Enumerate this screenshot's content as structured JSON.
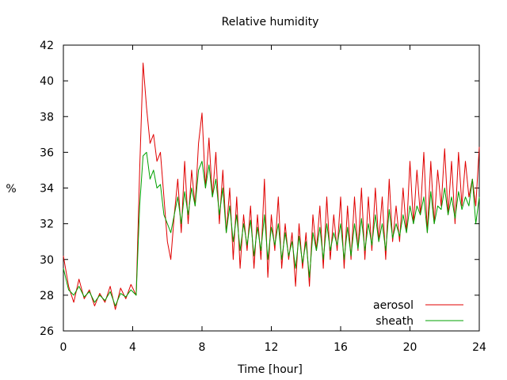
{
  "chart_data": {
    "type": "line",
    "title": "Relative humidity",
    "xlabel": "Time [hour]",
    "ylabel": "%",
    "xlim": [
      0,
      24
    ],
    "ylim": [
      26,
      42
    ],
    "xticks": [
      0,
      4,
      8,
      12,
      16,
      20,
      24
    ],
    "yticks": [
      26,
      28,
      30,
      32,
      34,
      36,
      38,
      40,
      42
    ],
    "grid": false,
    "legend_position": "bottom-right",
    "series": [
      {
        "name": "aerosol",
        "color": "#e00000",
        "x": [
          0,
          0.3,
          0.6,
          0.9,
          1.2,
          1.5,
          1.8,
          2.1,
          2.4,
          2.7,
          3.0,
          3.3,
          3.6,
          3.9,
          4.2,
          4.4,
          4.6,
          4.8,
          5.0,
          5.2,
          5.4,
          5.6,
          5.8,
          6.0,
          6.2,
          6.4,
          6.6,
          6.8,
          7.0,
          7.2,
          7.4,
          7.6,
          7.8,
          8.0,
          8.2,
          8.4,
          8.6,
          8.8,
          9.0,
          9.2,
          9.4,
          9.6,
          9.8,
          10.0,
          10.2,
          10.4,
          10.6,
          10.8,
          11.0,
          11.2,
          11.4,
          11.6,
          11.8,
          12.0,
          12.2,
          12.4,
          12.6,
          12.8,
          13.0,
          13.2,
          13.4,
          13.6,
          13.8,
          14.0,
          14.2,
          14.4,
          14.6,
          14.8,
          15.0,
          15.2,
          15.4,
          15.6,
          15.8,
          16.0,
          16.2,
          16.4,
          16.6,
          16.8,
          17.0,
          17.2,
          17.4,
          17.6,
          17.8,
          18.0,
          18.2,
          18.4,
          18.6,
          18.8,
          19.0,
          19.2,
          19.4,
          19.6,
          19.8,
          20.0,
          20.2,
          20.4,
          20.6,
          20.8,
          21.0,
          21.2,
          21.4,
          21.6,
          21.8,
          22.0,
          22.2,
          22.4,
          22.6,
          22.8,
          23.0,
          23.2,
          23.4,
          23.6,
          23.8,
          24.0
        ],
        "y": [
          30.2,
          28.5,
          27.6,
          28.9,
          27.8,
          28.3,
          27.4,
          28.1,
          27.6,
          28.5,
          27.2,
          28.4,
          27.8,
          28.6,
          28.0,
          35.0,
          41.0,
          38.5,
          36.5,
          37.0,
          35.5,
          36.0,
          33.5,
          31.0,
          30.0,
          32.5,
          34.5,
          31.5,
          35.5,
          32.0,
          35.0,
          33.0,
          36.5,
          38.2,
          34.0,
          36.8,
          33.5,
          36.0,
          32.0,
          35.0,
          31.5,
          34.0,
          30.0,
          33.5,
          29.5,
          32.5,
          30.5,
          33.0,
          29.5,
          32.5,
          30.0,
          34.5,
          29.0,
          32.5,
          30.5,
          33.5,
          29.5,
          32.0,
          30.0,
          31.5,
          28.5,
          32.0,
          29.5,
          31.5,
          28.5,
          32.5,
          30.5,
          33.0,
          29.5,
          33.5,
          30.0,
          32.5,
          30.5,
          33.5,
          29.5,
          33.0,
          30.0,
          33.5,
          30.5,
          34.0,
          30.0,
          33.5,
          30.5,
          34.0,
          31.0,
          33.5,
          30.0,
          34.5,
          31.0,
          33.0,
          31.0,
          34.0,
          31.5,
          35.5,
          32.0,
          35.0,
          32.5,
          36.0,
          31.5,
          35.5,
          32.0,
          35.0,
          33.0,
          36.2,
          32.5,
          35.5,
          32.0,
          36.0,
          33.0,
          35.5,
          33.5,
          34.5,
          33.0,
          36.3
        ]
      },
      {
        "name": "sheath",
        "color": "#00a000",
        "x": [
          0,
          0.3,
          0.6,
          0.9,
          1.2,
          1.5,
          1.8,
          2.1,
          2.4,
          2.7,
          3.0,
          3.3,
          3.6,
          3.9,
          4.2,
          4.4,
          4.6,
          4.8,
          5.0,
          5.2,
          5.4,
          5.6,
          5.8,
          6.0,
          6.2,
          6.4,
          6.6,
          6.8,
          7.0,
          7.2,
          7.4,
          7.6,
          7.8,
          8.0,
          8.2,
          8.4,
          8.6,
          8.8,
          9.0,
          9.2,
          9.4,
          9.6,
          9.8,
          10.0,
          10.2,
          10.4,
          10.6,
          10.8,
          11.0,
          11.2,
          11.4,
          11.6,
          11.8,
          12.0,
          12.2,
          12.4,
          12.6,
          12.8,
          13.0,
          13.2,
          13.4,
          13.6,
          13.8,
          14.0,
          14.2,
          14.4,
          14.6,
          14.8,
          15.0,
          15.2,
          15.4,
          15.6,
          15.8,
          16.0,
          16.2,
          16.4,
          16.6,
          16.8,
          17.0,
          17.2,
          17.4,
          17.6,
          17.8,
          18.0,
          18.2,
          18.4,
          18.6,
          18.8,
          19.0,
          19.2,
          19.4,
          19.6,
          19.8,
          20.0,
          20.2,
          20.4,
          20.6,
          20.8,
          21.0,
          21.2,
          21.4,
          21.6,
          21.8,
          22.0,
          22.2,
          22.4,
          22.6,
          22.8,
          23.0,
          23.2,
          23.4,
          23.6,
          23.8,
          24.0
        ],
        "y": [
          29.5,
          28.3,
          28.0,
          28.5,
          27.9,
          28.2,
          27.6,
          28.0,
          27.7,
          28.2,
          27.4,
          28.1,
          27.9,
          28.3,
          28.0,
          33.0,
          35.8,
          36.0,
          34.5,
          35.0,
          34.0,
          34.2,
          32.5,
          32.0,
          31.5,
          32.5,
          33.5,
          32.0,
          33.8,
          32.5,
          34.0,
          33.0,
          35.0,
          35.5,
          34.0,
          35.3,
          33.5,
          34.5,
          32.5,
          34.0,
          31.5,
          33.0,
          31.0,
          32.5,
          30.5,
          32.0,
          30.8,
          32.2,
          30.2,
          31.8,
          30.5,
          32.5,
          30.0,
          31.8,
          30.8,
          32.0,
          30.0,
          31.5,
          30.2,
          31.0,
          29.5,
          31.3,
          29.8,
          31.0,
          29.0,
          31.5,
          30.5,
          31.8,
          30.0,
          32.0,
          30.5,
          31.5,
          30.8,
          32.0,
          30.0,
          31.8,
          30.2,
          32.0,
          30.6,
          32.3,
          30.5,
          32.0,
          30.8,
          32.5,
          31.0,
          32.0,
          30.5,
          32.8,
          31.2,
          32.0,
          31.3,
          32.5,
          31.5,
          33.0,
          32.0,
          33.0,
          32.5,
          33.5,
          31.5,
          33.8,
          32.0,
          33.0,
          32.8,
          34.0,
          32.5,
          33.5,
          32.3,
          33.8,
          32.8,
          33.5,
          33.0,
          34.5,
          32.0,
          33.5
        ]
      }
    ]
  }
}
